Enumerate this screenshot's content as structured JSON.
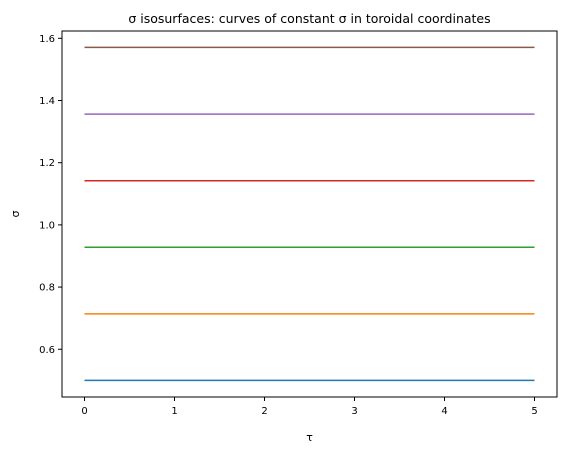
{
  "chart_data": {
    "type": "line",
    "title": "σ isosurfaces: curves of constant σ in toroidal coordinates",
    "xlabel": "τ",
    "ylabel": "σ",
    "xlim": [
      -0.25,
      5.25
    ],
    "ylim": [
      0.4465,
      1.6235
    ],
    "x_ticks": [
      0,
      1,
      2,
      3,
      4,
      5
    ],
    "x_tick_labels": [
      "0",
      "1",
      "2",
      "3",
      "4",
      "5"
    ],
    "y_ticks": [
      0.6,
      0.8,
      1.0,
      1.2,
      1.4,
      1.6
    ],
    "y_tick_labels": [
      "0.6",
      "0.8",
      "1.0",
      "1.2",
      "1.4",
      "1.6"
    ],
    "grid": false,
    "legend": "none",
    "series": [
      {
        "color": "#1f77b4",
        "x": [
          0,
          5
        ],
        "y": [
          0.5,
          0.5
        ]
      },
      {
        "color": "#ff7f0e",
        "x": [
          0,
          5
        ],
        "y": [
          0.714,
          0.714
        ]
      },
      {
        "color": "#2ca02c",
        "x": [
          0,
          5
        ],
        "y": [
          0.928,
          0.928
        ]
      },
      {
        "color": "#d62728",
        "x": [
          0,
          5
        ],
        "y": [
          1.142,
          1.142
        ]
      },
      {
        "color": "#9467bd",
        "x": [
          0,
          5
        ],
        "y": [
          1.356,
          1.356
        ]
      },
      {
        "color": "#8c564b",
        "x": [
          0,
          5
        ],
        "y": [
          1.5708,
          1.5708
        ]
      }
    ]
  }
}
